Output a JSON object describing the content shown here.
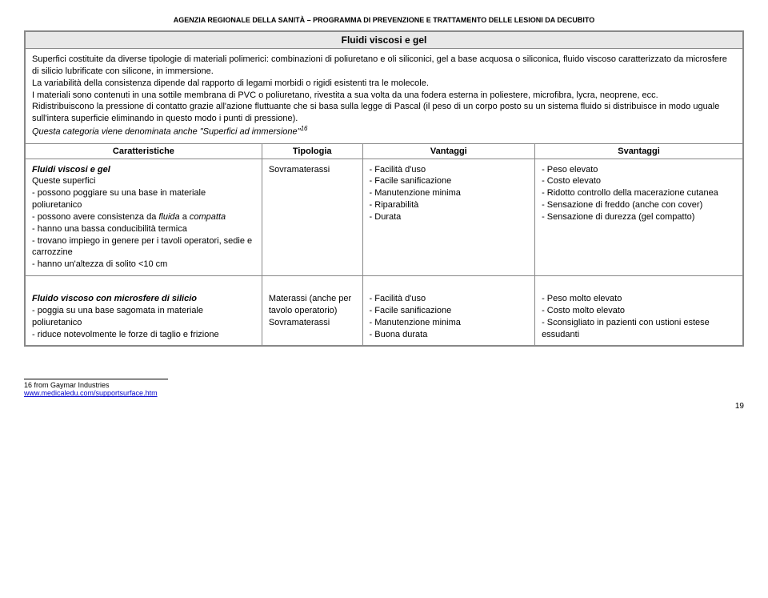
{
  "header": "AGENZIA REGIONALE DELLA SANITÀ – PROGRAMMA DI PREVENZIONE E TRATTAMENTO DELLE LESIONI DA DECUBITO",
  "title": "Fluidi viscosi e gel",
  "description_html": "Superfici costituite da diverse tipologie di materiali polimerici: combinazioni di poliuretano e oli siliconici, gel a base acquosa o siliconica, fluido viscoso caratterizzato da microsfere di silicio lubrificate con silicone, in immersione.\nLa variabilità della consistenza dipende dal rapporto di legami morbidi o rigidi esistenti tra le molecole.\nI materiali sono contenuti in una sottile membrana di PVC o poliuretano, rivestita a sua volta da una fodera esterna in poliestere, microfibra, lycra, neoprene, ecc.\nRidistribuiscono la pressione di contatto grazie all'azione fluttuante che si basa sulla legge di Pascal  (il peso di un corpo posto su un sistema fluido si distribuisce in modo uguale sull'intera superficie eliminando in questo modo i punti di pressione).",
  "description_last_line": "Questa categoria viene denominata anche \"Superfici ad immersione\"",
  "description_footnote_ref": "16",
  "columns": {
    "c1": "Caratteristiche",
    "c2": "Tipologia",
    "c3": "Vantaggi",
    "c4": "Svantaggi"
  },
  "row1": {
    "caratt_title": "Fluidi viscosi e gel",
    "caratt_sub": "Queste superfici",
    "caratt_items": [
      "- possono poggiare su una base in materiale poliuretanico",
      "- possono avere consistenza da <i>fluida</i> a <i>compatta</i>",
      "- hanno una bassa conducibilità termica",
      "- trovano impiego in genere per i tavoli operatori,  sedie e carrozzine",
      "- hanno un'altezza di solito <10  cm"
    ],
    "tipologia": "Sovramaterassi",
    "vantaggi": [
      "- Facilità d'uso",
      "- Facile sanificazione",
      "- Manutenzione minima",
      "- Riparabilità",
      "- Durata"
    ],
    "svantaggi": [
      "- Peso elevato",
      "- Costo elevato",
      "- Ridotto controllo della macerazione cutanea",
      "- Sensazione di   freddo (anche con cover)",
      "- Sensazione di durezza (gel compatto)"
    ]
  },
  "row2": {
    "caratt_title": "Fluido viscoso con microsfere di silicio",
    "caratt_items": [
      "- poggia su una base sagomata in materiale poliuretanico",
      "- riduce notevolmente le forze di taglio e frizione"
    ],
    "tipologia_lines": [
      "Materassi (anche per tavolo operatorio)",
      "Sovramaterassi"
    ],
    "vantaggi": [
      "- Facilità d'uso",
      "- Facile sanificazione",
      "- Manutenzione minima",
      "-  Buona durata"
    ],
    "svantaggi": [
      "- Peso molto elevato",
      "- Costo molto elevato",
      "- Sconsigliato in pazienti con ustioni estese essudanti"
    ]
  },
  "footnote_ref": "16",
  "footnote_text": " from Gaymar Industries   ",
  "footnote_link": "www.medicaledu.com/supportsurface.htm",
  "page_number": "19"
}
